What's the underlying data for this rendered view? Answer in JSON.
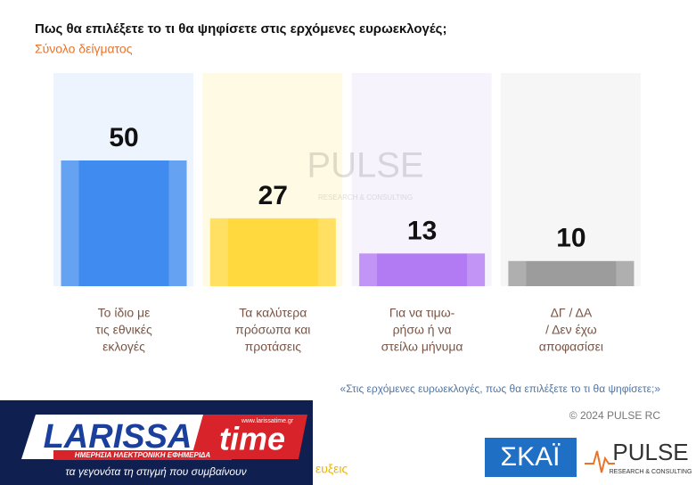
{
  "chart_data": {
    "type": "bar",
    "title": "Πως θα επιλέξετε το τι θα ψηφίσετε στις ερχόμενες ευρωεκλογές;",
    "subtitle": "Σύνολο δείγματος",
    "categories": [
      [
        "Το ίδιο με",
        "τις εθνικές",
        "εκλογές"
      ],
      [
        "Τα καλύτερα",
        "πρόσωπα και",
        "προτάσεις"
      ],
      [
        "Για να τιμω-",
        "ρήσω ή να",
        "στείλω μήνυμα"
      ],
      [
        "ΔΓ / ΔΑ",
        "/ Δεν έχω",
        "αποφασίσει"
      ]
    ],
    "values": [
      50,
      27,
      13,
      10
    ],
    "colors": [
      "#3f8bef",
      "#ffd93d",
      "#b27af3",
      "#9c9c9c"
    ],
    "source_note": "«Στις ερχόμενες ευρωεκλογές, πως θα επιλέξετε το τι θα ψηφίσετε;»",
    "copyright": "© 2024 PULSE RC",
    "watermark": [
      "PULSE",
      "RESEARCH & CONSULTING"
    ]
  },
  "logos": {
    "larissa": [
      "LARISSA",
      "time",
      "www.larissatime.gr",
      "ΗΜΕΡΗΣΙΑ ΗΛΕΚΤΡΟΝΙΚΗ ΕΦΗΜΕΡΙΔΑ",
      "τα γεγονότα τη στιγμή που συμβαίνουν"
    ],
    "partial_text": "ευξεις",
    "skai": "ΣΚΑΪ",
    "pulse": [
      "PULSE",
      "RESEARCH & CONSULTING"
    ]
  }
}
